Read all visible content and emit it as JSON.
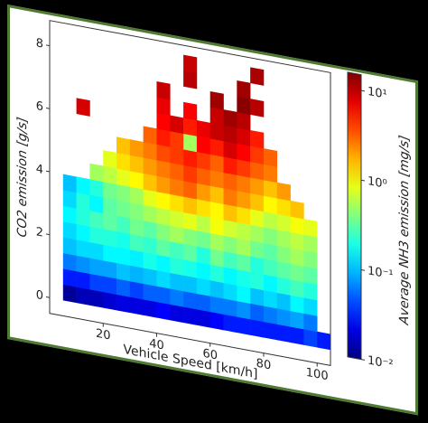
{
  "chart_data": {
    "type": "heatmap",
    "x_label": "Vehicle Speed [km/h]",
    "y_label": "CO2 emission [g/s]",
    "colorbar_label": "Average NH3 emission [mg/s]",
    "colormap": "jet",
    "log_colorscale": true,
    "xlim": [
      0,
      105
    ],
    "xticks": [
      20,
      40,
      60,
      80,
      100
    ],
    "ylim": [
      -0.5,
      8.8
    ],
    "yticks": [
      0,
      2,
      4,
      6,
      8
    ],
    "clim": [
      0.01,
      15
    ],
    "cticks": [
      {
        "value": 0.01,
        "label": "10⁻²"
      },
      {
        "value": 0.1,
        "label": "10⁻¹"
      },
      {
        "value": 1,
        "label": "10⁰"
      },
      {
        "value": 10,
        "label": "10¹"
      }
    ],
    "x_bins": [
      5,
      10,
      15,
      20,
      25,
      30,
      35,
      40,
      45,
      50,
      55,
      60,
      65,
      70,
      75,
      80,
      85,
      90,
      95,
      100,
      105
    ],
    "y_bins": [
      0,
      0.5,
      1,
      1.5,
      2,
      2.5,
      3,
      3.5,
      4,
      4.5,
      5,
      5.5,
      6,
      6.5,
      7,
      7.5,
      8,
      8.5
    ],
    "z": [
      [
        0.012,
        0.015,
        0.015,
        0.018,
        0.02,
        0.02,
        0.02,
        0.025,
        0.02,
        0.02,
        0.02,
        0.025,
        0.03,
        0.03,
        0.03,
        0.03,
        0.03,
        0.03,
        0.04,
        0.03
      ],
      [
        0.03,
        0.03,
        0.04,
        0.04,
        0.05,
        0.04,
        0.05,
        0.05,
        0.06,
        0.05,
        0.05,
        0.06,
        0.06,
        0.07,
        0.05,
        0.06,
        0.07,
        0.08,
        0.06,
        null
      ],
      [
        0.06,
        0.07,
        0.08,
        0.08,
        0.1,
        0.09,
        0.1,
        0.12,
        0.1,
        0.1,
        0.12,
        0.1,
        0.12,
        0.15,
        0.1,
        0.12,
        0.1,
        0.15,
        0.12,
        null
      ],
      [
        0.1,
        0.12,
        0.12,
        0.15,
        0.15,
        0.14,
        0.18,
        0.15,
        0.2,
        0.18,
        0.15,
        0.2,
        0.15,
        0.18,
        0.2,
        0.15,
        0.2,
        0.25,
        0.2,
        null
      ],
      [
        0.12,
        0.15,
        0.2,
        0.2,
        0.18,
        0.25,
        0.22,
        0.3,
        0.25,
        0.3,
        0.2,
        0.35,
        0.25,
        0.3,
        0.2,
        0.25,
        0.3,
        0.35,
        0.3,
        null
      ],
      [
        0.15,
        0.2,
        0.25,
        0.3,
        0.25,
        0.35,
        0.3,
        0.4,
        0.5,
        0.4,
        0.35,
        0.5,
        0.4,
        0.5,
        0.35,
        0.3,
        0.4,
        0.5,
        0.4,
        null
      ],
      [
        0.12,
        0.2,
        0.15,
        0.3,
        0.35,
        0.4,
        0.5,
        0.6,
        0.7,
        0.8,
        0.6,
        0.9,
        0.7,
        0.6,
        0.5,
        0.4,
        0.5,
        0.6,
        0.5,
        null
      ],
      [
        0.1,
        0.15,
        0.2,
        0.35,
        0.4,
        0.5,
        0.8,
        1,
        1.2,
        1.5,
        1.2,
        1,
        1.5,
        1.2,
        0.8,
        0.6,
        0.7,
        0.9,
        0.8,
        null
      ],
      [
        null,
        null,
        0.5,
        0.6,
        0.8,
        1,
        1.5,
        2,
        2.5,
        3,
        2,
        1.5,
        2.5,
        2,
        1.5,
        1,
        1.2,
        1.5,
        null,
        null
      ],
      [
        null,
        null,
        null,
        0.8,
        1.2,
        1.5,
        2,
        2.5,
        3,
        4,
        3,
        2.5,
        3,
        2.5,
        2,
        1.5,
        2,
        null,
        null,
        null
      ],
      [
        null,
        null,
        null,
        null,
        1.5,
        2,
        2.5,
        3.5,
        4,
        5,
        4,
        3,
        5,
        4,
        3,
        2.5,
        null,
        null,
        null,
        null
      ],
      [
        null,
        null,
        null,
        null,
        null,
        null,
        3,
        5,
        4,
        0.5,
        6,
        5,
        8,
        6,
        4,
        3,
        null,
        null,
        null,
        null
      ],
      [
        null,
        8,
        null,
        null,
        null,
        null,
        null,
        6,
        8,
        5,
        7,
        9,
        10,
        8,
        5,
        null,
        null,
        null,
        null,
        null
      ],
      [
        null,
        null,
        null,
        null,
        null,
        null,
        null,
        7,
        null,
        6,
        null,
        9,
        12,
        10,
        null,
        null,
        null,
        null,
        null,
        null
      ],
      [
        null,
        null,
        null,
        null,
        null,
        null,
        null,
        9,
        null,
        null,
        null,
        12,
        null,
        14,
        10,
        null,
        null,
        null,
        null,
        null
      ],
      [
        null,
        null,
        null,
        null,
        null,
        null,
        null,
        null,
        null,
        10,
        null,
        null,
        null,
        12,
        null,
        null,
        null,
        null,
        null,
        null
      ],
      [
        null,
        null,
        null,
        null,
        null,
        null,
        null,
        null,
        null,
        9,
        null,
        null,
        null,
        null,
        11,
        null,
        null,
        null,
        null,
        null
      ]
    ]
  }
}
